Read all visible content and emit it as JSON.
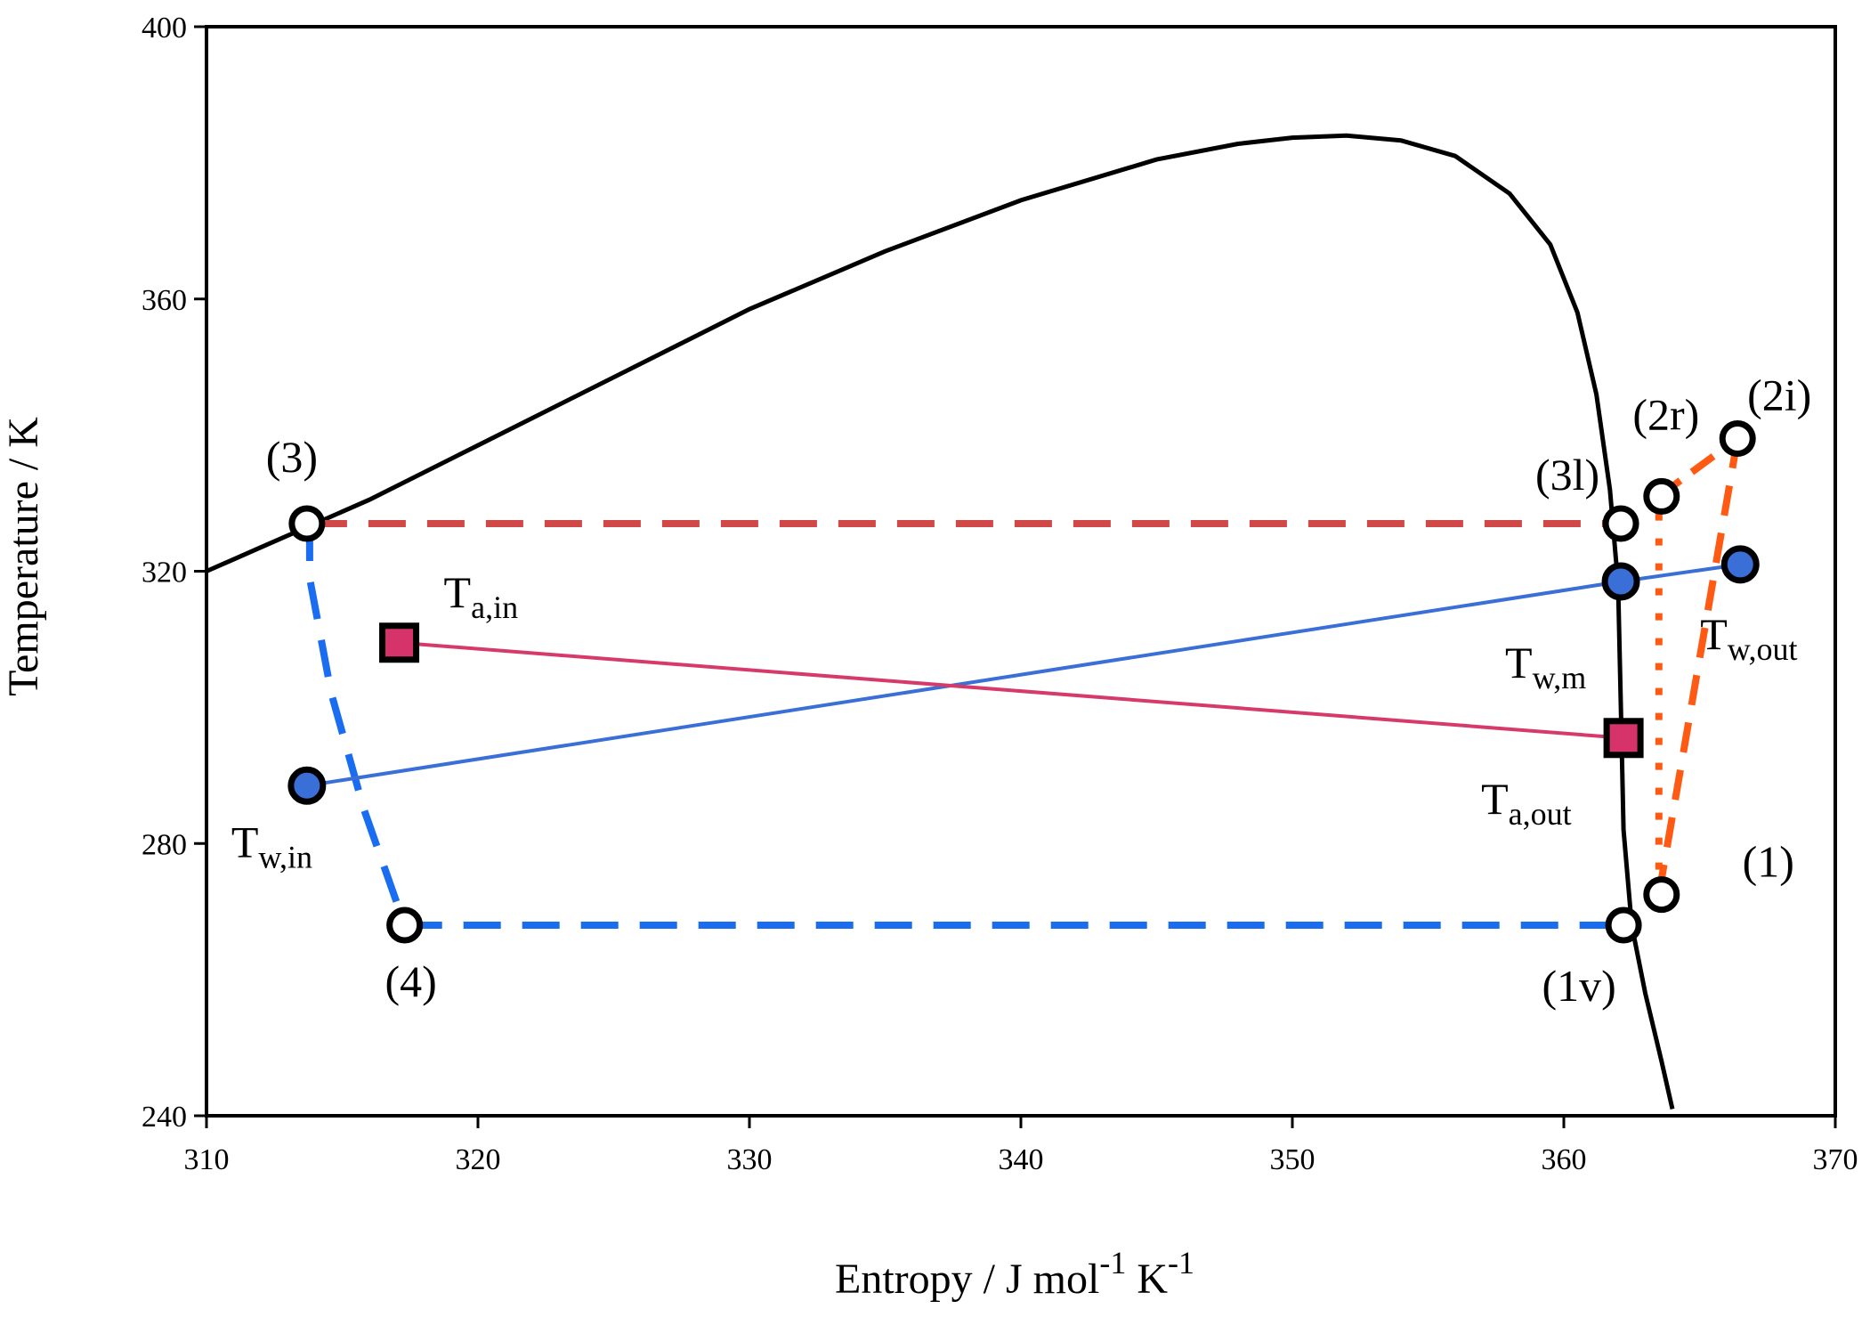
{
  "chart_data": {
    "type": "scatter",
    "title": "",
    "xlabel": "Entropy / J mol-1 K-1",
    "xlabel_parts": {
      "text": "Entropy / J mol",
      "sup1": "-1",
      "mid": " K",
      "sup2": "-1"
    },
    "ylabel": "Temperature / K",
    "xlim": [
      310,
      370
    ],
    "ylim": [
      240,
      400
    ],
    "xticks": [
      "310",
      "320",
      "330",
      "340",
      "350",
      "360",
      "370"
    ],
    "yticks": [
      "240",
      "280",
      "320",
      "360",
      "400"
    ],
    "grid": false,
    "colors": {
      "saturation": "#000000",
      "condenser": "#d04848",
      "evaporator": "#1a6cf0",
      "compressor": "#ff5a14",
      "water": "#3a6fd8",
      "air": "#d63a6a",
      "air_marker": "#d6336b"
    },
    "series": [
      {
        "name": "saturation-dome",
        "style": "solid",
        "points": [
          [
            310,
            320
          ],
          [
            312,
            323.5
          ],
          [
            314,
            327
          ],
          [
            316,
            330.5
          ],
          [
            320,
            338.5
          ],
          [
            325,
            348.5
          ],
          [
            330,
            358.5
          ],
          [
            335,
            367
          ],
          [
            340,
            374.5
          ],
          [
            345,
            380.5
          ],
          [
            348,
            382.8
          ],
          [
            350,
            383.7
          ],
          [
            352,
            384
          ],
          [
            354,
            383.3
          ],
          [
            356,
            381
          ],
          [
            358,
            375.5
          ],
          [
            359.5,
            368
          ],
          [
            360.5,
            358
          ],
          [
            361.2,
            346
          ],
          [
            361.7,
            332
          ],
          [
            362,
            318
          ],
          [
            362.1,
            300
          ],
          [
            362.2,
            282
          ],
          [
            362.5,
            268
          ],
          [
            363,
            258
          ],
          [
            363.6,
            248
          ],
          [
            364,
            241
          ]
        ]
      },
      {
        "name": "condenser-line",
        "style": "dashed",
        "points": [
          [
            313.8,
            327
          ],
          [
            362.1,
            327
          ]
        ]
      },
      {
        "name": "evaporator-line",
        "style": "dashed",
        "points": [
          [
            317.3,
            268
          ],
          [
            362.2,
            268
          ]
        ]
      },
      {
        "name": "expansion-line",
        "style": "dashed",
        "points": [
          [
            313.8,
            327
          ],
          [
            313.8,
            319
          ],
          [
            314.6,
            302
          ],
          [
            315.8,
            285
          ],
          [
            317.3,
            268
          ]
        ]
      },
      {
        "name": "compression-irreversible",
        "style": "dashed",
        "points": [
          [
            363.5,
            272.5
          ],
          [
            366.4,
            339.5
          ]
        ]
      },
      {
        "name": "compression-reversible",
        "style": "dotted",
        "points": [
          [
            363.5,
            272.5
          ],
          [
            363.5,
            331
          ]
        ]
      },
      {
        "name": "superheat-link",
        "style": "dashed",
        "points": [
          [
            363.5,
            331
          ],
          [
            366.4,
            339.5
          ]
        ]
      },
      {
        "name": "water-line",
        "style": "solid",
        "points": [
          [
            313.7,
            288.5
          ],
          [
            362.1,
            318.5
          ],
          [
            366.5,
            321
          ]
        ]
      },
      {
        "name": "air-line",
        "style": "solid",
        "points": [
          [
            317.1,
            309.5
          ],
          [
            362.2,
            295.5
          ]
        ]
      }
    ],
    "state_points": [
      {
        "id": "1",
        "label": "(1)",
        "x": 363.6,
        "y": 272.5
      },
      {
        "id": "1v",
        "label": "(1v)",
        "x": 362.2,
        "y": 268
      },
      {
        "id": "2r",
        "label": "(2r)",
        "x": 363.6,
        "y": 331
      },
      {
        "id": "2i",
        "label": "(2i)",
        "x": 366.4,
        "y": 339.5
      },
      {
        "id": "3",
        "label": "(3)",
        "x": 313.7,
        "y": 327
      },
      {
        "id": "3l",
        "label": "(3l)",
        "x": 362.1,
        "y": 327
      },
      {
        "id": "4",
        "label": "(4)",
        "x": 317.3,
        "y": 268
      }
    ],
    "water_points": [
      {
        "id": "w_in",
        "main": "T",
        "sub": "w,in",
        "x": 313.7,
        "y": 288.5
      },
      {
        "id": "w_m",
        "main": "T",
        "sub": "w,m",
        "x": 362.1,
        "y": 318.5
      },
      {
        "id": "w_out",
        "main": "T",
        "sub": "w,out",
        "x": 366.5,
        "y": 321
      }
    ],
    "air_points": [
      {
        "id": "a_in",
        "main": "T",
        "sub": "a,in",
        "x": 317.1,
        "y": 309.5
      },
      {
        "id": "a_out",
        "main": "T",
        "sub": "a,out",
        "x": 362.2,
        "y": 295.5
      }
    ]
  }
}
